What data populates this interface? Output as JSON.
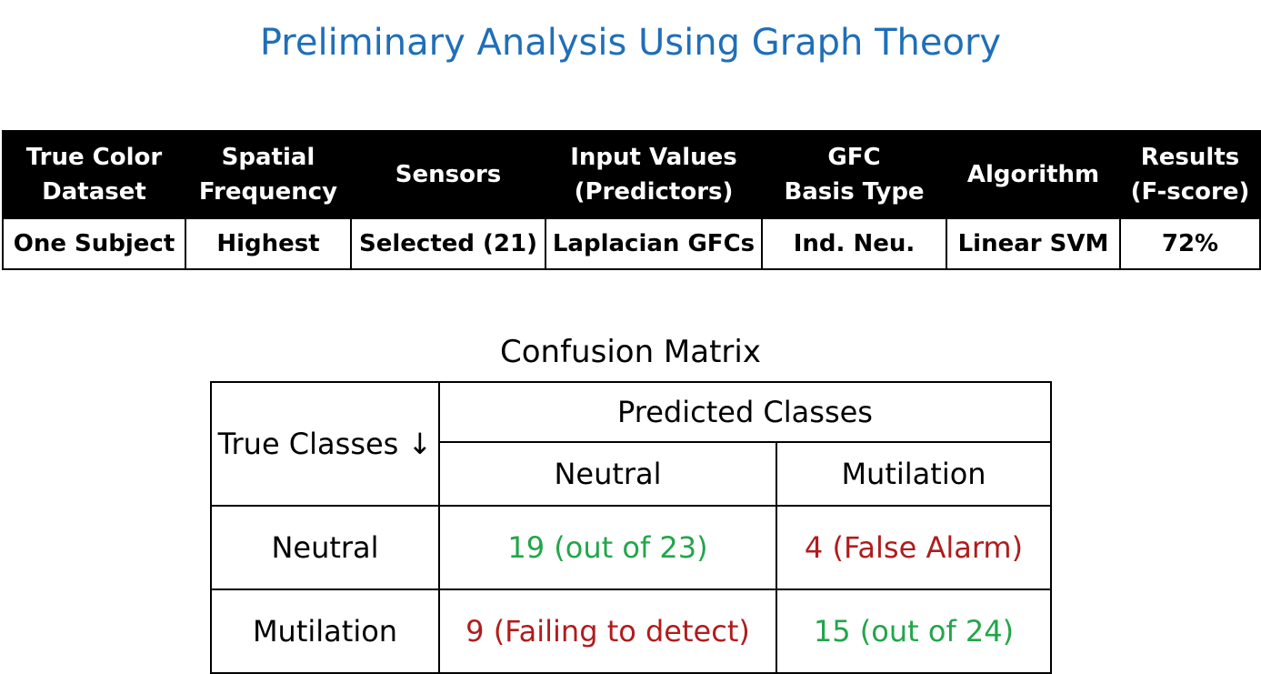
{
  "title": "Preliminary Analysis Using Graph Theory",
  "summary_table": {
    "headers": [
      [
        "True Color",
        "Dataset"
      ],
      [
        "Spatial",
        "Frequency"
      ],
      [
        "Sensors"
      ],
      [
        "Input Values",
        "(Predictors)"
      ],
      [
        "GFC",
        "Basis Type"
      ],
      [
        "Algorithm"
      ],
      [
        "Results",
        "(F-score)"
      ]
    ],
    "row": [
      "One Subject",
      "Highest",
      "Selected (21)",
      "Laplacian GFCs",
      "Ind. Neu.",
      "Linear SVM",
      "72%"
    ]
  },
  "confusion_matrix": {
    "title": "Confusion Matrix",
    "corner_label": "True Classes ↓",
    "predicted_header": "Predicted Classes",
    "predicted_labels": [
      "Neutral",
      "Mutilation"
    ],
    "rows": [
      {
        "label": "Neutral",
        "cells": [
          {
            "text": "19 (out of 23)",
            "kind": "good"
          },
          {
            "text": "4 (False Alarm)",
            "kind": "bad"
          }
        ]
      },
      {
        "label": "Mutilation",
        "cells": [
          {
            "text": "9 (Failing to detect)",
            "kind": "bad"
          },
          {
            "text": "15 (out of 24)",
            "kind": "good"
          }
        ]
      }
    ],
    "colors": {
      "good": "#22a64a",
      "bad": "#b01c1c"
    }
  }
}
